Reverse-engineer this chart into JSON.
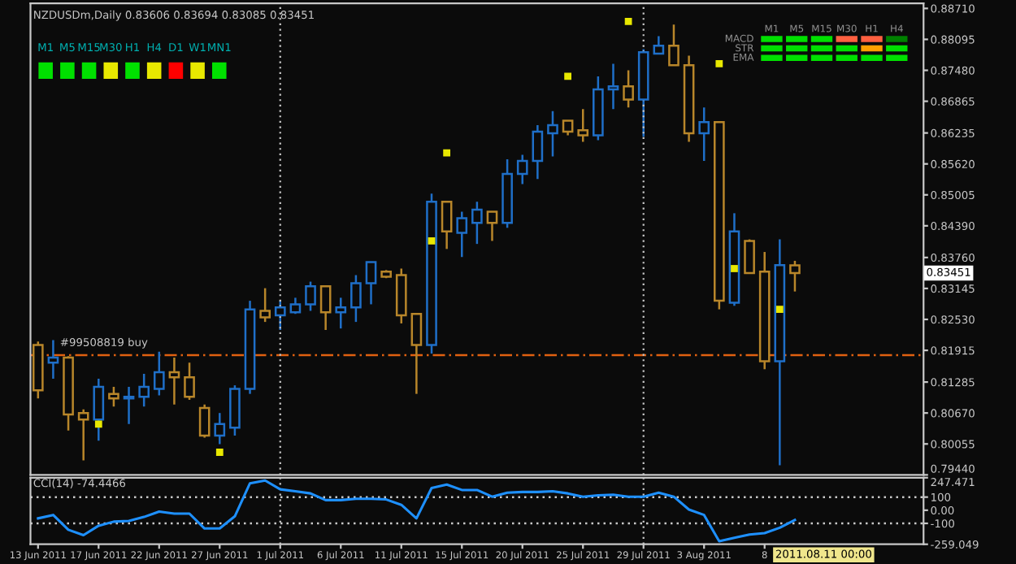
{
  "chart_data": [
    {
      "type": "candlestick",
      "title": "NZDUSDm,Daily 0.83606 0.83694 0.83085 0.83451",
      "categories": [
        null,
        null,
        null,
        null,
        null,
        null,
        null,
        null,
        null,
        null,
        null,
        null,
        null,
        null,
        null,
        null,
        null,
        null,
        null,
        null,
        null,
        null,
        null,
        null,
        null,
        null,
        null,
        null,
        null,
        null,
        null,
        null,
        null,
        null,
        null,
        null,
        null,
        null,
        null,
        null,
        null,
        null,
        null,
        null,
        null,
        null,
        null,
        null,
        null,
        null,
        null,
        null,
        null,
        null,
        null,
        null,
        null,
        null,
        null
      ],
      "ohlc": [
        [
          0.8202,
          0.8209,
          0.8096,
          0.8112
        ],
        [
          0.8167,
          0.8212,
          0.8135,
          0.8177
        ],
        [
          0.8177,
          0.818,
          0.8032,
          0.8064
        ],
        [
          0.8067,
          0.8074,
          0.7973,
          0.8054
        ],
        [
          0.8054,
          0.8135,
          0.8012,
          0.8119
        ],
        [
          0.8105,
          0.8119,
          0.808,
          0.8096
        ],
        [
          0.8096,
          0.8119,
          0.8045,
          0.8099
        ],
        [
          0.8099,
          0.8145,
          0.808,
          0.8119
        ],
        [
          0.8115,
          0.8189,
          0.8102,
          0.8148
        ],
        [
          0.8148,
          0.8177,
          0.8084,
          0.8138
        ],
        [
          0.8138,
          0.8167,
          0.8093,
          0.8099
        ],
        [
          0.8077,
          0.8084,
          0.8018,
          0.8022
        ],
        [
          0.8022,
          0.8067,
          0.8005,
          0.8045
        ],
        [
          0.8038,
          0.8122,
          0.8022,
          0.8115
        ],
        [
          0.8115,
          0.829,
          0.8105,
          0.8273
        ],
        [
          0.827,
          0.8315,
          0.8248,
          0.8257
        ],
        [
          0.8261,
          0.829,
          0.8232,
          0.8277
        ],
        [
          0.8267,
          0.8296,
          0.8264,
          0.8283
        ],
        [
          0.8283,
          0.8328,
          0.827,
          0.8319
        ],
        [
          0.8319,
          0.8319,
          0.8232,
          0.8267
        ],
        [
          0.8267,
          0.8296,
          0.8235,
          0.8277
        ],
        [
          0.8277,
          0.8341,
          0.8248,
          0.8325
        ],
        [
          0.8325,
          0.8367,
          0.8283,
          0.8367
        ],
        [
          0.8348,
          0.8351,
          0.8335,
          0.8338
        ],
        [
          0.8341,
          0.8354,
          0.8245,
          0.8261
        ],
        [
          0.8264,
          0.8264,
          0.8105,
          0.8202
        ],
        [
          0.8202,
          0.8503,
          0.8185,
          0.8487
        ],
        [
          0.8487,
          0.8487,
          0.8393,
          0.8428
        ],
        [
          0.8425,
          0.8467,
          0.8377,
          0.8454
        ],
        [
          0.8445,
          0.8487,
          0.8403,
          0.8471
        ],
        [
          0.8467,
          0.8467,
          0.8409,
          0.8445
        ],
        [
          0.8445,
          0.8571,
          0.8435,
          0.8542
        ],
        [
          0.8542,
          0.858,
          0.8522,
          0.8568
        ],
        [
          0.8568,
          0.8639,
          0.8532,
          0.8626
        ],
        [
          0.8623,
          0.8667,
          0.8577,
          0.8639
        ],
        [
          0.8648,
          0.8648,
          0.8619,
          0.8626
        ],
        [
          0.8629,
          0.8671,
          0.8606,
          0.8619
        ],
        [
          0.8619,
          0.8736,
          0.8609,
          0.871
        ],
        [
          0.871,
          0.8761,
          0.8671,
          0.8716
        ],
        [
          0.8716,
          0.8748,
          0.8674,
          0.869
        ],
        [
          0.869,
          0.879,
          0.8616,
          0.8784
        ],
        [
          0.8781,
          0.8816,
          0.8781,
          0.8797
        ],
        [
          0.8797,
          0.8839,
          0.8758,
          0.8758
        ],
        [
          0.8758,
          0.8777,
          0.8606,
          0.8623
        ],
        [
          0.8623,
          0.8674,
          0.8568,
          0.8645
        ],
        [
          0.8645,
          0.8645,
          0.8273,
          0.829
        ],
        [
          0.8286,
          0.8464,
          0.828,
          0.8428
        ],
        [
          0.8409,
          0.8412,
          0.8345,
          0.8345
        ],
        [
          0.8348,
          0.8387,
          0.8154,
          0.817
        ],
        [
          0.817,
          0.8412,
          0.7963,
          0.8361
        ],
        [
          0.83606,
          0.83694,
          0.83085,
          0.83451
        ],
        null,
        null,
        null,
        null,
        null,
        null,
        null,
        null
      ],
      "colors": [
        "#b8862a",
        "#1f6fc8",
        "#b8862a",
        "#b8862a",
        "#1f6fc8",
        "#b8862a",
        "#1f6fc8",
        "#1f6fc8",
        "#1f6fc8",
        "#b8862a",
        "#b8862a",
        "#b8862a",
        "#1f6fc8",
        "#1f6fc8",
        "#1f6fc8",
        "#b8862a",
        "#1f6fc8",
        "#1f6fc8",
        "#1f6fc8",
        "#b8862a",
        "#1f6fc8",
        "#1f6fc8",
        "#1f6fc8",
        "#b8862a",
        "#b8862a",
        "#b8862a",
        "#1f6fc8",
        "#b8862a",
        "#1f6fc8",
        "#1f6fc8",
        "#b8862a",
        "#1f6fc8",
        "#1f6fc8",
        "#1f6fc8",
        "#1f6fc8",
        "#b8862a",
        "#b8862a",
        "#1f6fc8",
        "#1f6fc8",
        "#b8862a",
        "#1f6fc8",
        "#1f6fc8",
        "#b8862a",
        "#b8862a",
        "#1f6fc8",
        "#b8862a",
        "#1f6fc8",
        "#b8862a",
        "#b8862a",
        "#1f6fc8",
        "#b8862a",
        null,
        null,
        null,
        null,
        null,
        null,
        null,
        null
      ],
      "series": [
        {
          "type": "scatter",
          "color": "#e8e800",
          "marker": "square",
          "values": [
            null,
            null,
            null,
            null,
            0.8045,
            null,
            null,
            null,
            null,
            null,
            null,
            null,
            0.7989,
            null,
            null,
            null,
            null,
            null,
            null,
            null,
            null,
            null,
            null,
            null,
            null,
            null,
            0.8409,
            0.8584,
            null,
            null,
            null,
            null,
            null,
            null,
            null,
            0.8736,
            null,
            null,
            null,
            0.8845,
            null,
            null,
            null,
            null,
            null,
            0.8761,
            0.8354,
            null,
            null,
            0.8273,
            null,
            null,
            null,
            null,
            null,
            null,
            null,
            null,
            null
          ]
        }
      ],
      "ylim": [
        0.7944,
        0.8881
      ],
      "yticks": [
        {
          "value": 0.8871,
          "label": "0.88710"
        },
        {
          "value": 0.88095,
          "label": "0.88095"
        },
        {
          "value": 0.8748,
          "label": "0.87480"
        },
        {
          "value": 0.86865,
          "label": "0.86865"
        },
        {
          "value": 0.86235,
          "label": "0.86235"
        },
        {
          "value": 0.8562,
          "label": "0.85620"
        },
        {
          "value": 0.85005,
          "label": "0.85005"
        },
        {
          "value": 0.8439,
          "label": "0.84390"
        },
        {
          "value": 0.8376,
          "label": "0.83760"
        },
        {
          "value": 0.83145,
          "label": "0.83145"
        },
        {
          "value": 0.8253,
          "label": "0.82530"
        },
        {
          "value": 0.81915,
          "label": "0.81915"
        },
        {
          "value": 0.81285,
          "label": "0.81285"
        },
        {
          "value": 0.8067,
          "label": "0.80670"
        },
        {
          "value": 0.80055,
          "label": "0.80055"
        },
        {
          "value": 0.7944,
          "label": "0.79440"
        }
      ],
      "tick_labels": "y",
      "ref_lines": [
        {
          "axis": "y",
          "value": 0.8182,
          "label": "#99508819 buy",
          "color": "#e06010",
          "line_style": "dashed"
        }
      ],
      "annotations": [
        "0.83451",
        "M1",
        "M5",
        "M15",
        "M30",
        "H1",
        "H4",
        "D1",
        "W1",
        "MN1",
        "M1",
        "M5",
        "M15",
        "M30",
        "H1",
        "H4",
        "MACD",
        "STR",
        "EMA"
      ]
    },
    {
      "type": "line",
      "title": "CCI(14) -74.4466",
      "categories": [
        "13 Jun 2011",
        null,
        null,
        null,
        "17 Jun 2011",
        null,
        null,
        null,
        "22 Jun 2011",
        null,
        null,
        null,
        "27 Jun 2011",
        null,
        null,
        null,
        "1 Jul 2011",
        null,
        null,
        null,
        "6 Jul 2011",
        null,
        null,
        null,
        "11 Jul 2011",
        null,
        null,
        null,
        "15 Jul 2011",
        null,
        null,
        null,
        "20 Jul 2011",
        null,
        null,
        null,
        "25 Jul 2011",
        null,
        null,
        null,
        "29 Jul 2011",
        null,
        null,
        null,
        "3 Aug 2011",
        null,
        null,
        null,
        "8",
        null,
        null,
        null,
        null,
        null,
        null,
        null,
        null,
        null,
        null
      ],
      "series": [
        {
          "color": "#1e90ff",
          "values": [
            -62,
            -36,
            -149,
            -190,
            -118,
            -87,
            -82,
            -51,
            -10,
            -26,
            -26,
            -139,
            -139,
            -46,
            205,
            226,
            159,
            144,
            128,
            77,
            77,
            87,
            87,
            82,
            41,
            -62,
            169,
            195,
            154,
            154,
            103,
            133,
            139,
            139,
            144,
            128,
            103,
            113,
            118,
            103,
            103,
            133,
            103,
            5,
            -36,
            -236,
            -210,
            -185,
            -174,
            -133,
            -74,
            null,
            null,
            null,
            null,
            null,
            null,
            null,
            null
          ]
        }
      ],
      "ylim": [
        -259.049,
        247.471
      ],
      "yticks": [
        {
          "value": 247.471,
          "label": "247.471"
        },
        100,
        {
          "value": 0,
          "label": "0.00"
        },
        -100,
        {
          "value": -259.049,
          "label": "-259.049"
        }
      ],
      "ref_lines": [
        {
          "axis": "y",
          "value": 100,
          "color": "#c8c8c8",
          "line_style": "dotted"
        },
        {
          "axis": "y",
          "value": -100,
          "color": "#c8c8c8",
          "line_style": "dotted"
        },
        {
          "axis": "x",
          "value": "1 Jul 2011",
          "color": "#c8c8c8",
          "line_style": "dotted"
        },
        {
          "axis": "x",
          "value": "29 Jul 2011",
          "color": "#c8c8c8",
          "line_style": "dotted"
        }
      ],
      "annotations": [
        "2011.08.11 00:00"
      ]
    }
  ]
}
